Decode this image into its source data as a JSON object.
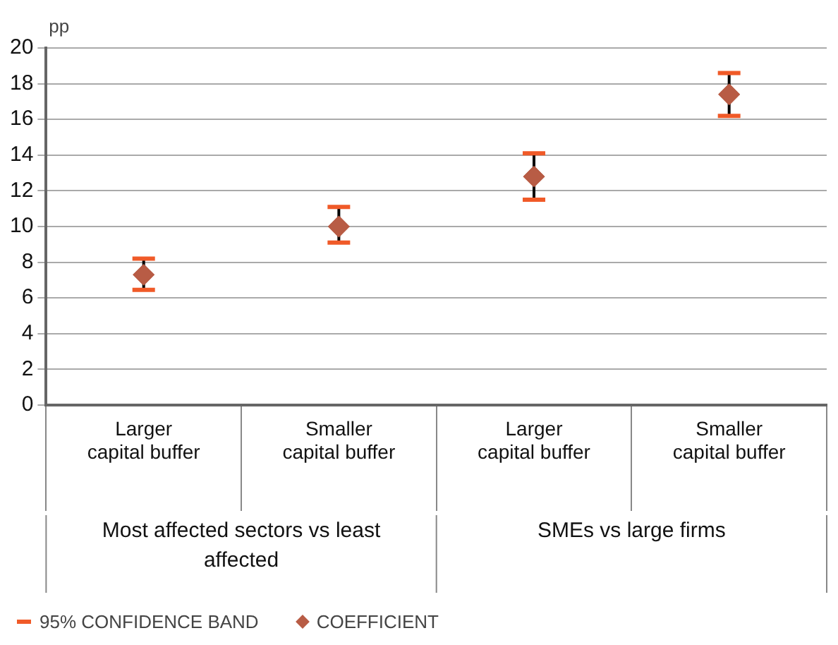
{
  "chart_data": {
    "type": "scatter",
    "ylabel": "pp",
    "categories": [
      "Larger capital buffer",
      "Smaller capital buffer",
      "Larger capital buffer",
      "Smaller capital buffer"
    ],
    "series": [
      {
        "name": "COEFFICIENT",
        "color": "#b85c45",
        "values": [
          7.3,
          10.0,
          12.8,
          17.4
        ],
        "errors": [
          [
            6.45,
            8.2
          ],
          [
            9.1,
            11.1
          ],
          [
            11.5,
            14.1
          ],
          [
            16.2,
            18.6
          ]
        ]
      }
    ],
    "annotations": [
      "Most affected sectors vs least affected",
      "SMEs vs large firms",
      "95% CONFIDENCE BAND"
    ],
    "ylim": [
      0,
      20
    ],
    "yticks": [
      0,
      2,
      4,
      6,
      8,
      10,
      12,
      14,
      16,
      18,
      20
    ],
    "grid": "y",
    "marker": "diamond",
    "legend": "bottom left"
  }
}
